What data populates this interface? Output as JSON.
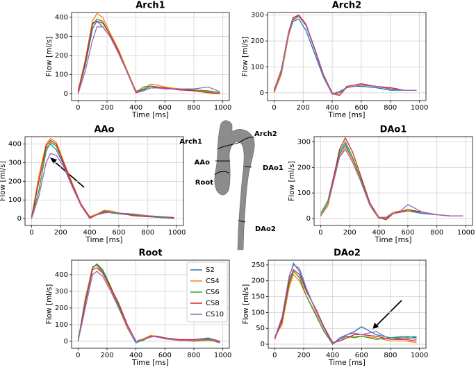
{
  "chart_data": [
    {
      "type": "line",
      "title": "Arch1",
      "x_label": "Time [ms]",
      "y_label": "Flow [ml/s]",
      "x": [
        0,
        50,
        100,
        130,
        170,
        220,
        280,
        340,
        400,
        450,
        500,
        550,
        600,
        700,
        800,
        900,
        980
      ],
      "xlim": [
        -45,
        1045
      ],
      "ylim": [
        -36,
        425
      ],
      "xticks": [
        0,
        200,
        400,
        600,
        800,
        1000
      ],
      "yticks": [
        0,
        100,
        200,
        300,
        400
      ],
      "grid": true,
      "series": [
        {
          "name": "S2",
          "color": "#1f77b4",
          "values": [
            10,
            150,
            340,
            380,
            350,
            300,
            220,
            120,
            10,
            20,
            40,
            35,
            30,
            25,
            20,
            15,
            5
          ]
        },
        {
          "name": "CS4",
          "color": "#ff7f0e",
          "values": [
            15,
            180,
            380,
            420,
            400,
            320,
            230,
            120,
            15,
            25,
            50,
            45,
            35,
            25,
            15,
            10,
            5
          ]
        },
        {
          "name": "CS6",
          "color": "#2ca02c",
          "values": [
            5,
            160,
            360,
            390,
            380,
            310,
            220,
            110,
            5,
            35,
            40,
            35,
            30,
            20,
            20,
            15,
            5
          ]
        },
        {
          "name": "CS8",
          "color": "#d62728",
          "values": [
            10,
            170,
            370,
            380,
            370,
            310,
            220,
            110,
            5,
            15,
            30,
            35,
            30,
            20,
            15,
            5,
            0
          ]
        },
        {
          "name": "CS10",
          "color": "#9467bd",
          "values": [
            0,
            120,
            280,
            350,
            350,
            300,
            210,
            110,
            10,
            15,
            30,
            30,
            25,
            25,
            25,
            35,
            10
          ]
        }
      ]
    },
    {
      "type": "line",
      "title": "Arch2",
      "x_label": "Time [ms]",
      "y_label": "Flow [ml/s]",
      "x": [
        0,
        50,
        100,
        130,
        170,
        220,
        280,
        340,
        400,
        450,
        500,
        550,
        600,
        700,
        800,
        900,
        980
      ],
      "xlim": [
        -45,
        1045
      ],
      "ylim": [
        -30,
        310
      ],
      "xticks": [
        0,
        200,
        400,
        600,
        800,
        1000
      ],
      "yticks": [
        0,
        100,
        200,
        300
      ],
      "grid": true,
      "series": [
        {
          "name": "S2",
          "color": "#1f77b4",
          "values": [
            5,
            80,
            220,
            275,
            285,
            240,
            150,
            60,
            -5,
            5,
            20,
            25,
            25,
            20,
            10,
            10,
            10
          ]
        },
        {
          "name": "CS4",
          "color": "#ff7f0e",
          "values": [
            0,
            70,
            220,
            280,
            295,
            260,
            170,
            70,
            -5,
            -10,
            20,
            25,
            30,
            25,
            15,
            10,
            10
          ]
        },
        {
          "name": "CS6",
          "color": "#2ca02c",
          "values": [
            5,
            80,
            230,
            280,
            300,
            260,
            165,
            65,
            -5,
            0,
            20,
            25,
            30,
            25,
            15,
            10,
            10
          ]
        },
        {
          "name": "CS8",
          "color": "#d62728",
          "values": [
            10,
            90,
            235,
            290,
            300,
            265,
            170,
            70,
            0,
            -10,
            25,
            30,
            35,
            25,
            20,
            10,
            10
          ]
        },
        {
          "name": "CS10",
          "color": "#9467bd",
          "values": [
            5,
            85,
            230,
            285,
            295,
            260,
            165,
            65,
            -5,
            0,
            20,
            25,
            30,
            25,
            15,
            10,
            10
          ]
        }
      ]
    },
    {
      "type": "line",
      "title": "AAo",
      "x_label": "Time [ms]",
      "y_label": "Flow [ml/s]",
      "x": [
        0,
        50,
        100,
        130,
        170,
        220,
        280,
        340,
        400,
        450,
        500,
        550,
        600,
        700,
        800,
        900,
        980
      ],
      "xlim": [
        -45,
        1045
      ],
      "ylim": [
        -37,
        440
      ],
      "xticks": [
        0,
        200,
        400,
        600,
        800,
        1000
      ],
      "yticks": [
        0,
        100,
        200,
        300,
        400
      ],
      "grid": true,
      "series": [
        {
          "name": "S2",
          "color": "#1f77b4",
          "values": [
            0,
            200,
            380,
            400,
            370,
            290,
            180,
            80,
            10,
            20,
            40,
            35,
            30,
            20,
            15,
            10,
            5
          ]
        },
        {
          "name": "CS4",
          "color": "#ff7f0e",
          "values": [
            5,
            230,
            400,
            430,
            410,
            310,
            190,
            80,
            10,
            25,
            45,
            40,
            30,
            20,
            15,
            10,
            5
          ]
        },
        {
          "name": "CS6",
          "color": "#2ca02c",
          "values": [
            0,
            150,
            360,
            410,
            390,
            300,
            180,
            70,
            5,
            20,
            40,
            30,
            25,
            20,
            10,
            5,
            0
          ]
        },
        {
          "name": "CS8",
          "color": "#d62728",
          "values": [
            10,
            200,
            390,
            420,
            400,
            300,
            185,
            75,
            5,
            20,
            35,
            35,
            30,
            15,
            10,
            10,
            5
          ]
        },
        {
          "name": "CS10",
          "color": "#9467bd",
          "values": [
            0,
            120,
            300,
            350,
            340,
            280,
            170,
            70,
            0,
            20,
            30,
            35,
            30,
            25,
            15,
            10,
            0
          ]
        }
      ]
    },
    {
      "type": "line",
      "title": "DAo1",
      "x_label": "Time [ms]",
      "y_label": "Flow [ml/s]",
      "x": [
        0,
        50,
        100,
        130,
        170,
        220,
        280,
        340,
        400,
        450,
        500,
        550,
        600,
        700,
        800,
        900,
        980
      ],
      "xlim": [
        -45,
        1045
      ],
      "ylim": [
        -27,
        320
      ],
      "xticks": [
        0,
        200,
        400,
        600,
        800,
        1000
      ],
      "yticks": [
        0,
        100,
        200,
        300
      ],
      "grid": true,
      "series": [
        {
          "name": "S2",
          "color": "#1f77b4",
          "values": [
            10,
            60,
            180,
            250,
            290,
            230,
            140,
            50,
            0,
            5,
            20,
            25,
            30,
            20,
            15,
            10,
            10
          ]
        },
        {
          "name": "CS4",
          "color": "#ff7f0e",
          "values": [
            10,
            50,
            170,
            240,
            280,
            230,
            140,
            50,
            0,
            5,
            25,
            30,
            35,
            25,
            15,
            10,
            10
          ]
        },
        {
          "name": "CS6",
          "color": "#2ca02c",
          "values": [
            20,
            70,
            190,
            260,
            300,
            240,
            150,
            60,
            5,
            0,
            20,
            25,
            30,
            25,
            15,
            10,
            10
          ]
        },
        {
          "name": "CS8",
          "color": "#d62728",
          "values": [
            10,
            60,
            190,
            270,
            315,
            260,
            160,
            60,
            5,
            -5,
            20,
            25,
            35,
            25,
            15,
            10,
            10
          ]
        },
        {
          "name": "CS10",
          "color": "#9467bd",
          "values": [
            10,
            60,
            170,
            240,
            270,
            220,
            140,
            50,
            5,
            5,
            20,
            30,
            55,
            25,
            15,
            10,
            10
          ]
        }
      ]
    },
    {
      "type": "line",
      "title": "Root",
      "x_label": "Time [ms]",
      "y_label": "Flow [ml/s]",
      "legend": "upper right",
      "x": [
        0,
        50,
        100,
        130,
        170,
        220,
        280,
        340,
        400,
        450,
        500,
        550,
        600,
        700,
        800,
        900,
        980
      ],
      "xlim": [
        -45,
        1045
      ],
      "ylim": [
        -42,
        487
      ],
      "xticks": [
        0,
        200,
        400,
        600,
        800,
        1000
      ],
      "yticks": [
        0,
        100,
        200,
        300,
        400
      ],
      "grid": true,
      "series": [
        {
          "name": "S2",
          "color": "#1f77b4",
          "values": [
            0,
            260,
            440,
            460,
            420,
            330,
            210,
            80,
            -10,
            10,
            30,
            30,
            20,
            10,
            0,
            10,
            -10
          ]
        },
        {
          "name": "CS4",
          "color": "#ff7f0e",
          "values": [
            0,
            250,
            450,
            455,
            410,
            320,
            200,
            80,
            0,
            15,
            35,
            30,
            15,
            5,
            0,
            5,
            -5
          ]
        },
        {
          "name": "CS6",
          "color": "#2ca02c",
          "values": [
            5,
            240,
            440,
            465,
            430,
            340,
            215,
            90,
            0,
            5,
            30,
            25,
            20,
            10,
            5,
            15,
            -5
          ]
        },
        {
          "name": "CS8",
          "color": "#d62728",
          "values": [
            0,
            230,
            430,
            440,
            410,
            330,
            230,
            100,
            0,
            10,
            25,
            30,
            20,
            10,
            10,
            20,
            0
          ]
        },
        {
          "name": "CS10",
          "color": "#9467bd",
          "values": [
            0,
            200,
            400,
            420,
            390,
            310,
            200,
            90,
            0,
            10,
            30,
            25,
            15,
            5,
            5,
            20,
            -5
          ]
        }
      ]
    },
    {
      "type": "line",
      "title": "DAo2",
      "x_label": "Time [ms]",
      "y_label": "Flow [ml/s]",
      "x": [
        0,
        50,
        100,
        130,
        170,
        220,
        280,
        340,
        400,
        450,
        500,
        550,
        600,
        700,
        800,
        900,
        980
      ],
      "xlim": [
        -45,
        1045
      ],
      "ylim": [
        -13,
        265
      ],
      "xticks": [
        0,
        200,
        400,
        600,
        800,
        1000
      ],
      "yticks": [
        0,
        50,
        100,
        150,
        200,
        250
      ],
      "grid": true,
      "series": [
        {
          "name": "S2",
          "color": "#1f77b4",
          "values": [
            20,
            80,
            210,
            255,
            230,
            170,
            110,
            50,
            0,
            20,
            30,
            40,
            55,
            30,
            20,
            25,
            20
          ]
        },
        {
          "name": "CS4",
          "color": "#ff7f0e",
          "values": [
            25,
            60,
            180,
            220,
            200,
            150,
            100,
            40,
            5,
            10,
            20,
            25,
            25,
            20,
            10,
            10,
            5
          ]
        },
        {
          "name": "CS6",
          "color": "#2ca02c",
          "values": [
            20,
            70,
            190,
            230,
            210,
            150,
            95,
            40,
            0,
            15,
            25,
            20,
            25,
            15,
            20,
            20,
            25
          ]
        },
        {
          "name": "CS8",
          "color": "#d62728",
          "values": [
            15,
            75,
            200,
            235,
            220,
            165,
            115,
            55,
            5,
            10,
            20,
            30,
            30,
            25,
            15,
            15,
            10
          ]
        },
        {
          "name": "CS10",
          "color": "#9467bd",
          "values": [
            20,
            85,
            215,
            250,
            240,
            175,
            110,
            50,
            0,
            15,
            30,
            35,
            30,
            40,
            15,
            20,
            15
          ]
        }
      ]
    }
  ],
  "anatomy": {
    "labels": [
      "Arch1",
      "Arch2",
      "AAo",
      "DAo1",
      "Root",
      "DAo2"
    ]
  }
}
